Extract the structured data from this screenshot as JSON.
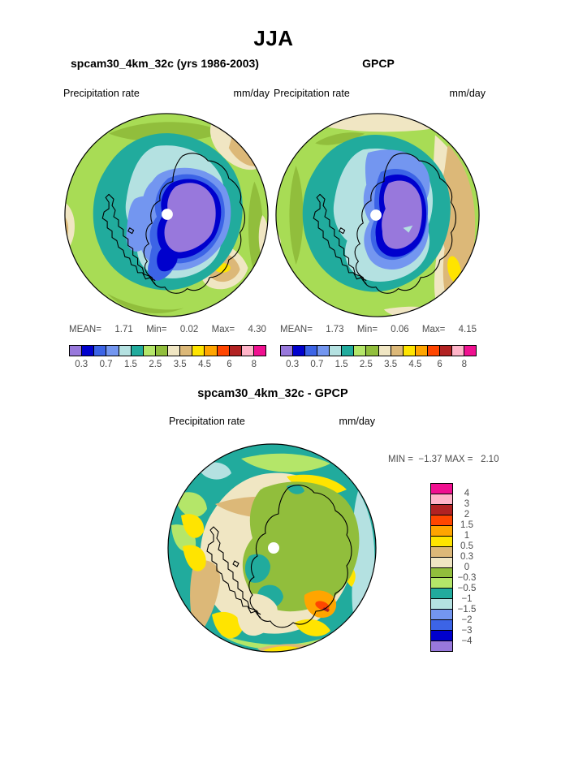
{
  "header": {
    "season": "JJA"
  },
  "panels": {
    "model": {
      "title": "spcam30_4km_32c (yrs 1986-2003)",
      "variable": "Precipitation rate",
      "units": "mm/day",
      "stats_tokens": [
        "MEAN=",
        "1.71",
        "Min=",
        "0.02",
        "Max=",
        "4.30"
      ]
    },
    "obs": {
      "title": "GPCP",
      "variable": "Precipitation rate",
      "units": "mm/day",
      "stats_tokens": [
        "MEAN=",
        "1.73",
        "Min=",
        "0.06",
        "Max=",
        "4.15"
      ]
    },
    "diff": {
      "title": "spcam30_4km_32c - GPCP",
      "variable": "Precipitation rate",
      "units": "mm/day",
      "minmax_line": "MIN =  −1.37 MAX =   2.10"
    }
  },
  "colorbar_abs": {
    "colors": [
      "#9878DC",
      "#0000CD",
      "#3C64E6",
      "#7396F0",
      "#B4E1E1",
      "#21AB9D",
      "#B4E669",
      "#91BE3C",
      "#F0E6C3",
      "#DCB878",
      "#FFE400",
      "#FFA500",
      "#FF4600",
      "#B22222",
      "#FFB4C8",
      "#F01090"
    ],
    "ticks": [
      "0.3",
      "0.7",
      "1.5",
      "2.5",
      "3.5",
      "4.5",
      "6",
      "8"
    ]
  },
  "colorbar_diff": {
    "colors": [
      "#F01090",
      "#FFB4C8",
      "#B22222",
      "#FF4600",
      "#FFA500",
      "#FFE400",
      "#DCB878",
      "#F0E6C3",
      "#91BE3C",
      "#B4E669",
      "#21AB9D",
      "#B4E1E1",
      "#7396F0",
      "#3C64E6",
      "#0000CD",
      "#9878DC"
    ],
    "ticks": [
      "4",
      "3",
      "2",
      "1.5",
      "1",
      "0.5",
      "0.3",
      "0",
      "−0.3",
      "−0.5",
      "−1",
      "−1.5",
      "−2",
      "−3",
      "−4"
    ]
  },
  "chart_data": [
    {
      "type": "heatmap",
      "subtype": "south-polar-stereographic-filled-contour-map",
      "panel": "model",
      "season": "JJA",
      "title": "spcam30_4km_32c (yrs 1986-2003)",
      "variable": "Precipitation rate",
      "units": "mm/day",
      "stats": {
        "mean": 1.71,
        "min": 0.02,
        "max": 4.3
      },
      "colorbar_tick_values": [
        0.3,
        0.7,
        1.5,
        2.5,
        3.5,
        4.5,
        6,
        8
      ],
      "n_color_bins": 16,
      "legend_position": "below"
    },
    {
      "type": "heatmap",
      "subtype": "south-polar-stereographic-filled-contour-map",
      "panel": "observations",
      "season": "JJA",
      "title": "GPCP",
      "variable": "Precipitation rate",
      "units": "mm/day",
      "stats": {
        "mean": 1.73,
        "min": 0.06,
        "max": 4.15
      },
      "colorbar_tick_values": [
        0.3,
        0.7,
        1.5,
        2.5,
        3.5,
        4.5,
        6,
        8
      ],
      "n_color_bins": 16,
      "legend_position": "below"
    },
    {
      "type": "heatmap",
      "subtype": "south-polar-stereographic-filled-contour-map",
      "panel": "difference",
      "season": "JJA",
      "title": "spcam30_4km_32c - GPCP",
      "variable": "Precipitation rate",
      "units": "mm/day",
      "stats": {
        "min": -1.37,
        "max": 2.1
      },
      "colorbar_tick_values": [
        4,
        3,
        2,
        1.5,
        1,
        0.5,
        0.3,
        0,
        -0.3,
        -0.5,
        -1,
        -1.5,
        -2,
        -3,
        -4
      ],
      "n_color_bins": 16,
      "legend_position": "right"
    }
  ]
}
